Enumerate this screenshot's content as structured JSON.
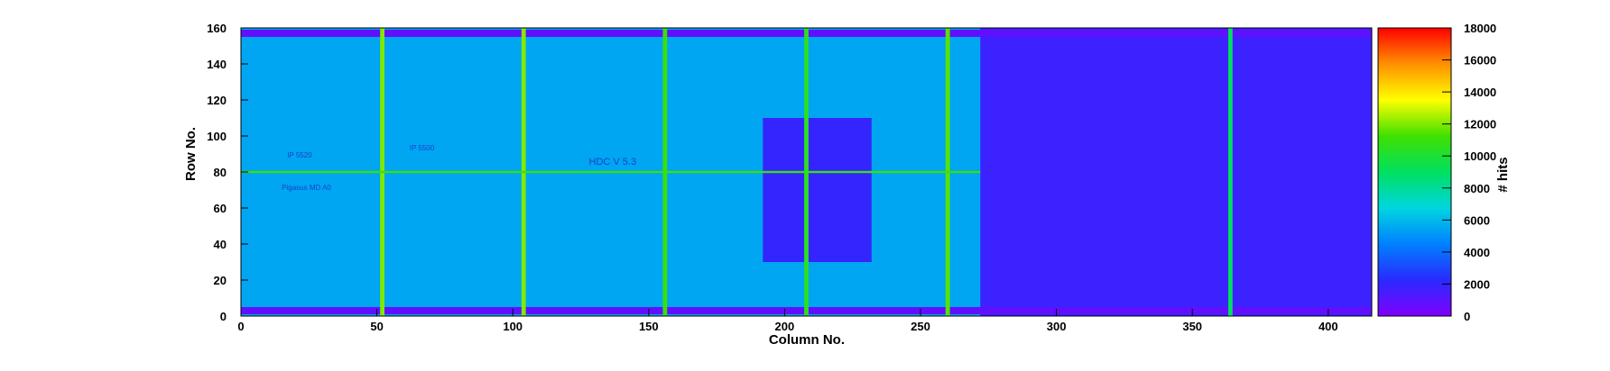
{
  "chart_data": {
    "type": "heatmap",
    "title": "",
    "xlabel": "Column No.",
    "ylabel": "Row No.",
    "zlabel": "# hits",
    "xlim": [
      0,
      416
    ],
    "ylim": [
      0,
      160
    ],
    "zlim": [
      0,
      18000
    ],
    "x_ticks": [
      0,
      50,
      100,
      150,
      200,
      250,
      300,
      350,
      400
    ],
    "y_ticks": [
      0,
      20,
      40,
      60,
      80,
      100,
      120,
      140,
      160
    ],
    "z_ticks": [
      0,
      2000,
      4000,
      6000,
      8000,
      10000,
      12000,
      14000,
      16000,
      18000
    ],
    "colormap": [
      "#8000ff",
      "#2a2aff",
      "#0080ff",
      "#00d6e0",
      "#00e060",
      "#40e000",
      "#ffff00",
      "#ff9000",
      "#ff0000"
    ],
    "background_level": 5500,
    "bright_columns": [
      {
        "x": 52,
        "value": 12000
      },
      {
        "x": 104,
        "value": 12000
      },
      {
        "x": 156,
        "value": 11000
      },
      {
        "x": 208,
        "value": 10500
      },
      {
        "x": 260,
        "value": 11500
      },
      {
        "x": 364,
        "value": 9000
      }
    ],
    "bright_row": {
      "y": 80,
      "value": 11000
    },
    "low_region": {
      "x": [
        272,
        416
      ],
      "y": [
        0,
        160
      ],
      "value": 1800
    },
    "dark_block": {
      "x": [
        192,
        232
      ],
      "y": [
        30,
        110
      ],
      "value": 2000
    },
    "pad_rows": [
      {
        "y": [
          1,
          5
        ],
        "value": 800
      },
      {
        "y": [
          155,
          159
        ],
        "value": 800
      }
    ],
    "visible_chip_text": [
      "HDC V 5.3",
      "IP 5520",
      "IP 5500",
      "Pigasus MD A0"
    ]
  }
}
